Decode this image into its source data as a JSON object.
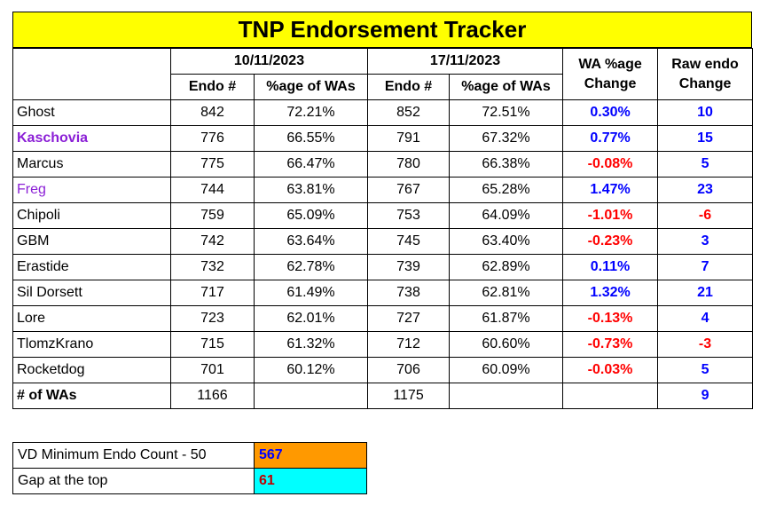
{
  "title": "TNP Endorsement Tracker",
  "headers": {
    "date1": "10/11/2023",
    "date2": "17/11/2023",
    "endo": "Endo #",
    "pct": "%age of WAs",
    "wa_change": "WA %age Change",
    "raw_change": "Raw endo Change"
  },
  "rows": [
    {
      "name": "Ghost",
      "e1": "842",
      "p1": "72.21%",
      "e2": "852",
      "p2": "72.51%",
      "wa": "0.30%",
      "raw": "10",
      "sign": "pos",
      "style": ""
    },
    {
      "name": "Kaschovia",
      "e1": "776",
      "p1": "66.55%",
      "e2": "791",
      "p2": "67.32%",
      "wa": "0.77%",
      "raw": "15",
      "sign": "pos",
      "style": "purple-bold"
    },
    {
      "name": "Marcus",
      "e1": "775",
      "p1": "66.47%",
      "e2": "780",
      "p2": "66.38%",
      "wa": "-0.08%",
      "raw": "5",
      "sign": "neg",
      "style": ""
    },
    {
      "name": "Freg",
      "e1": "744",
      "p1": "63.81%",
      "e2": "767",
      "p2": "65.28%",
      "wa": "1.47%",
      "raw": "23",
      "sign": "pos",
      "style": "purple"
    },
    {
      "name": "Chipoli",
      "e1": "759",
      "p1": "65.09%",
      "e2": "753",
      "p2": "64.09%",
      "wa": "-1.01%",
      "raw": "-6",
      "sign": "neg",
      "style": ""
    },
    {
      "name": "GBM",
      "e1": "742",
      "p1": "63.64%",
      "e2": "745",
      "p2": "63.40%",
      "wa": "-0.23%",
      "raw": "3",
      "sign": "neg",
      "style": ""
    },
    {
      "name": "Erastide",
      "e1": "732",
      "p1": "62.78%",
      "e2": "739",
      "p2": "62.89%",
      "wa": "0.11%",
      "raw": "7",
      "sign": "pos",
      "style": ""
    },
    {
      "name": "Sil Dorsett",
      "e1": "717",
      "p1": "61.49%",
      "e2": "738",
      "p2": "62.81%",
      "wa": "1.32%",
      "raw": "21",
      "sign": "pos",
      "style": ""
    },
    {
      "name": "Lore",
      "e1": "723",
      "p1": "62.01%",
      "e2": "727",
      "p2": "61.87%",
      "wa": "-0.13%",
      "raw": "4",
      "sign": "neg",
      "style": ""
    },
    {
      "name": "TlomzKrano",
      "e1": "715",
      "p1": "61.32%",
      "e2": "712",
      "p2": "60.60%",
      "wa": "-0.73%",
      "raw": "-3",
      "sign": "neg",
      "style": ""
    },
    {
      "name": "Rocketdog",
      "e1": "701",
      "p1": "60.12%",
      "e2": "706",
      "p2": "60.09%",
      "wa": "-0.03%",
      "raw": "5",
      "sign": "neg",
      "style": ""
    }
  ],
  "total": {
    "label": "# of WAs",
    "w1": "1166",
    "w2": "1175",
    "raw": "9"
  },
  "summary": {
    "vd_label": "VD Minimum Endo Count - 50",
    "vd_value": "567",
    "gap_label": "Gap at the top",
    "gap_value": "61"
  },
  "colors": {
    "title_bg": "#ffff00",
    "positive": "#0000ff",
    "negative": "#ff0000",
    "highlight_name": "#8b1fd6",
    "vd_bg": "#ff9900",
    "gap_bg": "#00ffff"
  }
}
